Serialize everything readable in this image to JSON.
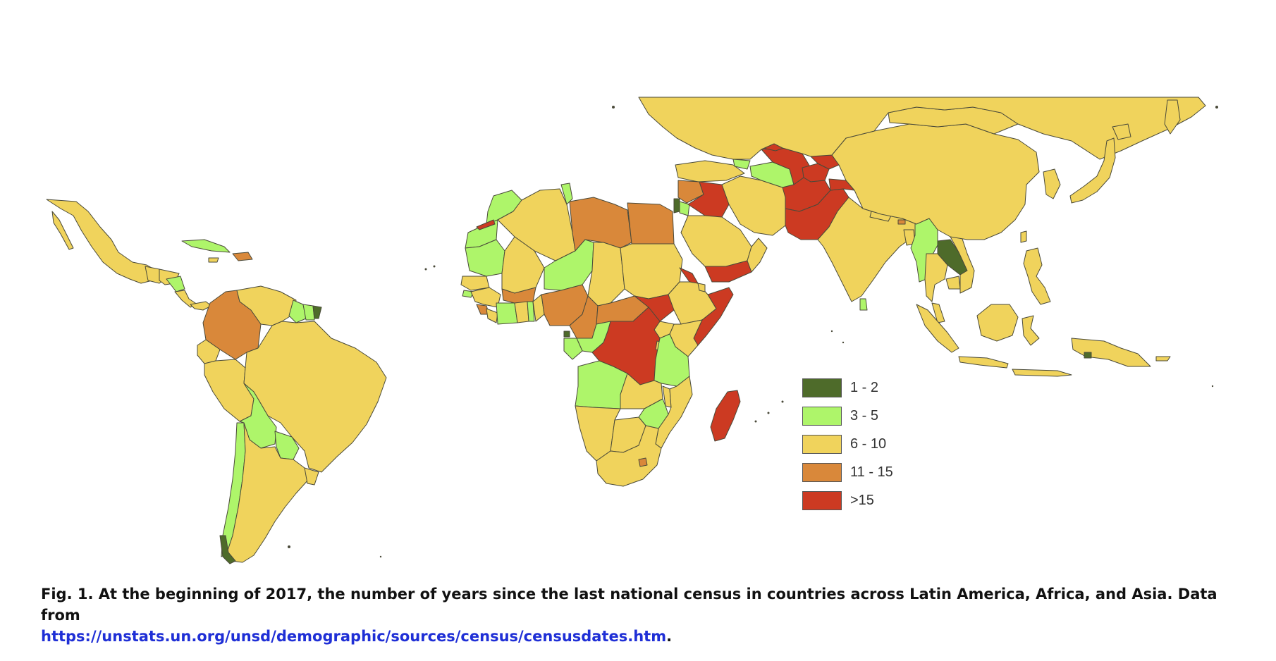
{
  "legend": {
    "items": [
      {
        "label": "1 - 2",
        "color": "#4e6b2a"
      },
      {
        "label": "3 - 5",
        "color": "#aef56a"
      },
      {
        "label": "6 - 10",
        "color": "#f0d35c"
      },
      {
        "label": "11 - 15",
        "color": "#d9883a"
      },
      {
        "label": ">15",
        "color": "#cc3a22"
      }
    ]
  },
  "caption": {
    "text": "Fig. 1.  At the beginning of 2017, the number of years since the last national census in countries across Latin America, Africa, and Asia. Data from",
    "link": "https://unstats.un.org/unsd/demographic/sources/census/censusdates.htm",
    "end": "."
  },
  "map": {
    "border_color": "#4a4a3a"
  }
}
